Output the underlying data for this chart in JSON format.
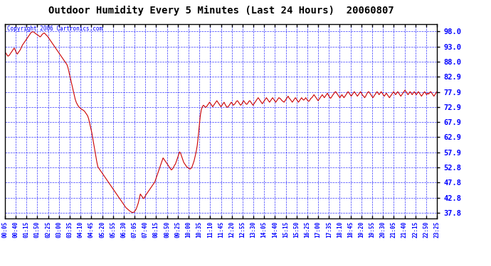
{
  "title": "Outdoor Humidity Every 5 Minutes (Last 24 Hours)  20060807",
  "copyright_text": "Copyright 2006 Cartronics.com",
  "bg_color": "#ffffff",
  "plot_bg_color": "#ffffff",
  "grid_color": "#0000ff",
  "line_color": "#cc0000",
  "yticks": [
    37.8,
    42.8,
    47.8,
    52.8,
    57.9,
    62.9,
    67.9,
    72.9,
    77.9,
    82.9,
    88.0,
    93.0,
    98.0
  ],
  "ylim": [
    36.0,
    100.5
  ],
  "xtick_labels": [
    "00:05",
    "00:40",
    "01:15",
    "01:50",
    "02:25",
    "03:00",
    "03:35",
    "04:10",
    "04:45",
    "05:20",
    "05:55",
    "06:30",
    "07:05",
    "07:40",
    "08:15",
    "08:50",
    "09:25",
    "10:00",
    "10:35",
    "11:10",
    "11:45",
    "12:20",
    "12:55",
    "13:30",
    "14:05",
    "14:40",
    "15:15",
    "15:50",
    "16:25",
    "17:00",
    "17:35",
    "18:10",
    "18:45",
    "19:20",
    "19:55",
    "20:30",
    "21:05",
    "21:40",
    "22:15",
    "22:50",
    "23:25"
  ],
  "humidity_values": [
    90.5,
    90.8,
    90.2,
    89.8,
    90.0,
    90.5,
    91.0,
    91.5,
    92.0,
    92.5,
    91.8,
    91.0,
    90.5,
    91.0,
    91.5,
    92.0,
    92.8,
    93.5,
    94.0,
    94.5,
    95.0,
    95.5,
    96.0,
    96.5,
    97.0,
    97.5,
    97.8,
    97.9,
    97.8,
    97.5,
    97.2,
    97.0,
    96.8,
    96.5,
    96.2,
    96.5,
    97.0,
    97.3,
    97.5,
    97.2,
    96.8,
    96.5,
    96.0,
    95.5,
    95.0,
    94.5,
    94.0,
    93.5,
    93.0,
    92.5,
    92.0,
    91.5,
    91.0,
    90.5,
    90.0,
    89.5,
    89.0,
    88.5,
    88.0,
    87.5,
    87.0,
    86.0,
    84.5,
    83.0,
    81.5,
    80.0,
    78.5,
    77.0,
    75.5,
    74.5,
    73.8,
    73.2,
    72.8,
    72.5,
    72.2,
    72.0,
    71.8,
    71.5,
    71.0,
    70.5,
    70.0,
    69.0,
    67.5,
    66.0,
    64.5,
    62.5,
    60.5,
    58.5,
    56.5,
    54.5,
    53.0,
    52.5,
    52.0,
    51.5,
    51.0,
    50.5,
    50.0,
    49.5,
    49.0,
    48.5,
    48.0,
    47.5,
    47.0,
    46.5,
    46.0,
    45.5,
    45.0,
    44.5,
    44.0,
    43.5,
    43.0,
    42.5,
    42.0,
    41.5,
    41.0,
    40.5,
    40.0,
    39.5,
    39.2,
    38.9,
    38.6,
    38.3,
    38.1,
    37.9,
    37.9,
    38.0,
    38.5,
    39.0,
    40.0,
    41.0,
    42.5,
    44.0,
    43.5,
    43.0,
    42.5,
    42.8,
    43.5,
    44.0,
    44.5,
    45.0,
    45.5,
    46.0,
    46.5,
    47.0,
    47.5,
    48.0,
    49.0,
    50.0,
    51.0,
    52.0,
    53.0,
    54.0,
    55.0,
    56.0,
    55.5,
    55.0,
    54.5,
    54.0,
    53.5,
    53.0,
    52.5,
    52.0,
    52.3,
    52.8,
    53.5,
    54.0,
    55.0,
    56.0,
    57.0,
    58.0,
    57.5,
    56.5,
    55.5,
    54.5,
    54.0,
    53.5,
    53.0,
    52.8,
    52.5,
    52.3,
    52.5,
    53.0,
    54.0,
    55.0,
    56.5,
    58.0,
    60.0,
    63.0,
    66.5,
    70.0,
    72.0,
    73.0,
    73.5,
    73.2,
    72.8,
    73.0,
    73.5,
    74.0,
    74.5,
    74.0,
    73.5,
    73.0,
    73.5,
    74.0,
    74.5,
    75.0,
    74.5,
    74.0,
    73.5,
    73.0,
    73.5,
    74.0,
    74.5,
    73.8,
    73.2,
    72.8,
    73.0,
    73.5,
    74.0,
    74.5,
    74.0,
    73.5,
    73.8,
    74.2,
    74.8,
    75.0,
    74.5,
    74.0,
    73.5,
    73.8,
    74.5,
    75.0,
    74.5,
    74.0,
    73.8,
    74.2,
    74.8,
    75.0,
    74.5,
    74.0,
    73.5,
    74.0,
    74.5,
    75.0,
    75.5,
    76.0,
    75.5,
    75.0,
    74.5,
    74.0,
    74.5,
    75.0,
    75.5,
    76.0,
    75.5,
    75.0,
    74.5,
    75.0,
    75.5,
    76.0,
    75.5,
    75.0,
    74.5,
    75.0,
    75.5,
    76.0,
    75.8,
    75.5,
    75.0,
    74.8,
    74.5,
    75.0,
    75.5,
    76.0,
    76.5,
    75.8,
    75.5,
    75.0,
    74.5,
    75.0,
    75.5,
    76.0,
    75.5,
    75.0,
    74.5,
    75.0,
    75.5,
    76.0,
    75.5,
    75.2,
    75.5,
    76.0,
    75.5,
    75.0,
    74.8,
    75.2,
    75.8,
    76.0,
    76.5,
    77.0,
    76.5,
    76.0,
    75.5,
    75.0,
    75.5,
    76.0,
    76.5,
    77.0,
    76.5,
    76.0,
    76.5,
    77.0,
    77.5,
    76.8,
    76.2,
    75.8,
    76.2,
    76.8,
    77.2,
    77.8,
    78.0,
    77.5,
    77.0,
    76.5,
    76.0,
    76.5,
    77.0,
    76.5,
    76.0,
    76.5,
    77.0,
    77.5,
    78.0,
    77.5,
    77.0,
    76.5,
    77.0,
    77.5,
    78.0,
    77.5,
    77.0,
    76.5,
    77.0,
    77.5,
    78.0,
    77.5,
    76.8,
    76.5,
    76.0,
    76.5,
    77.2,
    77.8,
    78.0,
    77.5,
    77.0,
    76.5,
    76.0,
    76.5,
    77.0,
    77.5,
    78.0,
    77.5,
    77.0,
    77.5,
    78.0,
    77.5,
    77.0,
    76.5,
    77.0,
    77.5,
    77.0,
    76.5,
    76.0,
    76.5,
    77.0,
    77.5,
    78.0,
    77.5,
    77.0,
    77.5,
    78.0,
    77.5,
    77.0,
    76.5,
    77.0,
    77.5,
    78.0,
    78.5,
    78.0,
    77.5,
    77.0,
    77.5,
    78.0,
    77.5,
    77.0,
    77.5,
    78.0,
    77.5,
    77.0,
    77.5,
    78.0,
    77.5,
    77.0,
    76.5,
    77.0,
    77.5,
    78.0,
    77.5,
    77.0,
    77.5,
    77.2,
    77.8,
    78.0,
    77.5,
    77.0,
    76.5,
    77.0,
    77.5,
    78.0
  ]
}
